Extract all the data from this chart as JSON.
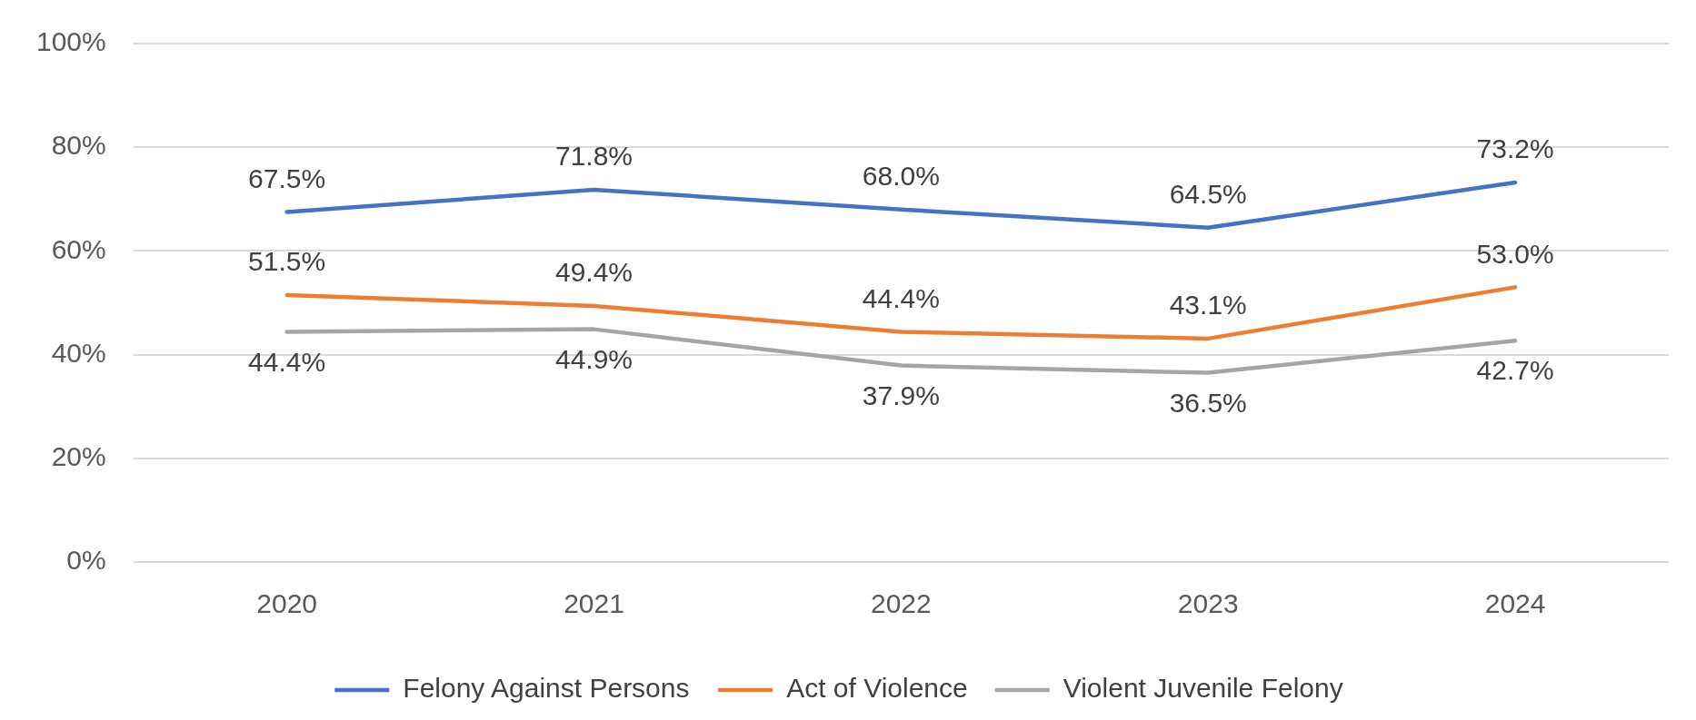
{
  "chart_data": {
    "type": "line",
    "categories": [
      "2020",
      "2021",
      "2022",
      "2023",
      "2024"
    ],
    "series": [
      {
        "name": "Felony Against Persons",
        "color": "#4472c4",
        "values": [
          67.5,
          71.8,
          68.0,
          64.5,
          73.2
        ],
        "value_labels": [
          "67.5%",
          "71.8%",
          "68.0%",
          "64.5%",
          "73.2%"
        ]
      },
      {
        "name": "Act of Violence",
        "color": "#ed7d31",
        "values": [
          51.5,
          49.4,
          44.4,
          43.1,
          53.0
        ],
        "value_labels": [
          "51.5%",
          "49.4%",
          "44.4%",
          "43.1%",
          "53.0%"
        ]
      },
      {
        "name": "Violent Juvenile Felony",
        "color": "#a5a5a5",
        "values": [
          44.4,
          44.9,
          37.9,
          36.5,
          42.7
        ],
        "value_labels": [
          "44.4%",
          "44.9%",
          "37.9%",
          "36.5%",
          "42.7%"
        ]
      }
    ],
    "ylim": [
      0,
      100
    ],
    "yticks": [
      {
        "value": 0,
        "label": "0%"
      },
      {
        "value": 20,
        "label": "20%"
      },
      {
        "value": 40,
        "label": "40%"
      },
      {
        "value": 60,
        "label": "60%"
      },
      {
        "value": 80,
        "label": "80%"
      },
      {
        "value": 100,
        "label": "100%"
      }
    ],
    "grid": "y",
    "legend": "bottom",
    "marker": "none",
    "line_style": "solid"
  }
}
